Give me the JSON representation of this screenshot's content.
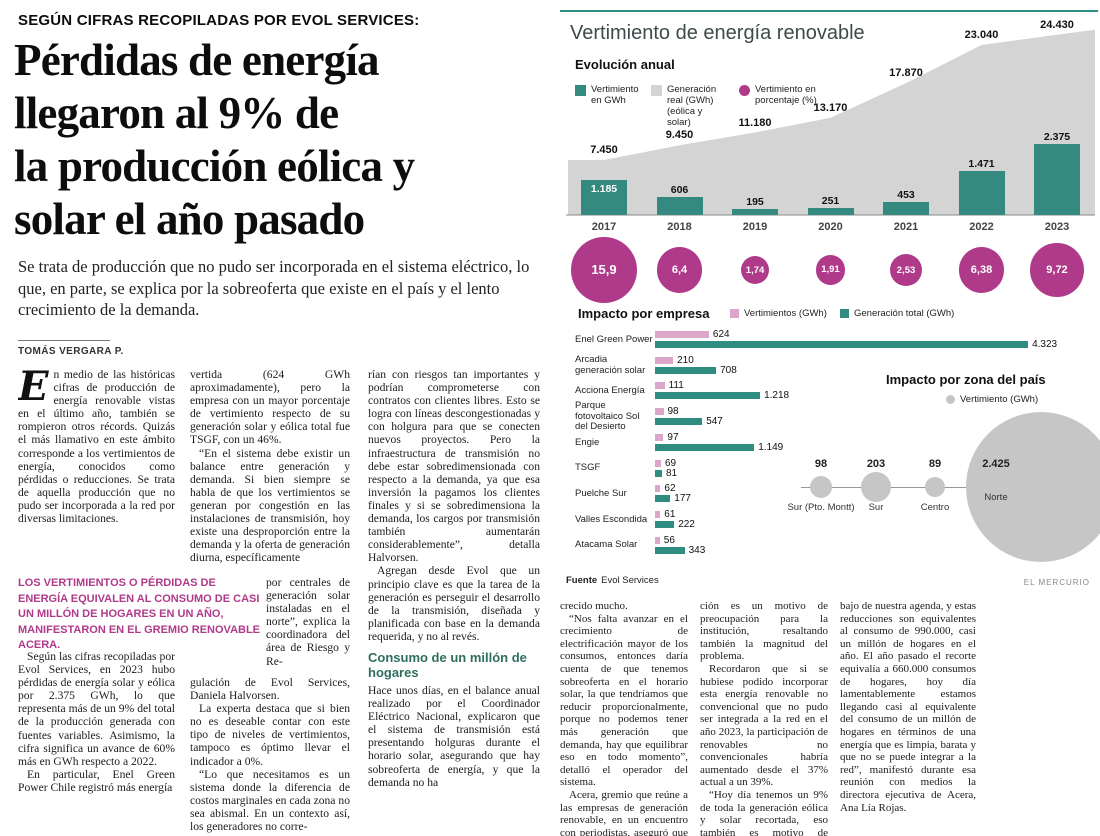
{
  "kicker": "SEGÚN CIFRAS RECOPILADAS POR EVOL SERVICES:",
  "headline_lines": [
    "Pérdidas de energía",
    "llegaron al 9% de",
    "la producción eólica y",
    "solar el año pasado"
  ],
  "lede": "Se trata de producción que no pudo ser incorporada en el sistema eléctrico, lo que, en parte, se explica por la sobreoferta que existe en el país y el lento crecimiento de la demanda.",
  "byline": "TOMÁS VERGARA P.",
  "article": {
    "intro_dropcap": "E",
    "intro_rest": "n medio de las históricas cifras de producción de energía renovable vistas en el último año, también se rompieron otros récords. Quizás el más llamativo en este ámbito corresponde a los vertimientos de energía, conocidos como pérdidas o reducciones. Se trata de aquella producción que no pudo ser incorporada a la red por diversas limitaciones.",
    "pull_quote": "LOS VERTIMIENTOS O PÉRDIDAS DE ENERGÍA EQUIVALEN AL CONSUMO DE CASI UN MILLÓN DE HOGARES EN UN AÑO, MANIFESTARON EN EL GREMIO RENOVABLE ACERA.",
    "col1_paras": [
      "Según las cifras recopiladas por Evol Services, en 2023 hubo pérdidas de energía solar y eólica por 2.375 GWh, lo que representa más de un 9% del total de la producción generada con fuentes variables. Asimismo, la cifra significa un avance de 60% más en GWh respecto a 2022.",
      "En particular, Enel Green Power Chile registró más energía"
    ],
    "col2_paras": [
      "vertida (624 GWh aproximadamente), pero la empresa con un mayor porcentaje de vertimiento respecto de su generación solar y eólica total fue TSGF, con un 46%.",
      "“En el sistema debe existir un balance entre generación y demanda. Si bien siempre se habla de que los vertimientos se generan por congestión en las instalaciones de transmisión, hoy existe una desproporción entre la demanda y la oferta de generación diurna, específicamente"
    ],
    "col2_wrap": "por centrales de generación solar instaladas en el norte”, explica la coordinadora del área de Riesgo y Re-",
    "col2_after": [
      "gulación de Evol Services, Daniela Halvorsen.",
      "La experta destaca que si bien no es deseable contar con este tipo de niveles de vertimientos, tampoco es óptimo llevar el indicador a 0%.",
      "“Lo que necesitamos es un sistema donde la diferencia de costos marginales en cada zona no sea abismal. En un contexto así, los generadores no corre-"
    ],
    "col3_paras": [
      "rían con riesgos tan importantes y podrían comprometerse con contratos con clientes libres. Esto se logra con líneas descongestionadas y con holgura para que se conecten nuevos proyectos. Pero la infraestructura de transmisión no debe estar sobredimensionada con respecto a la demanda, ya que esa inversión la pagamos los clientes finales y si se sobredimensiona la demanda, los cargos por transmisión también aumentarán considerablemente”, detalla Halvorsen.",
      "Agregan desde Evol que un principio clave es que la tarea de la generación es perseguir el desarrollo de la transmisión, diseñada y planificada con base en la demanda requerida, y no al revés."
    ],
    "subhead": "Consumo de un millón de hogares",
    "col3_after": [
      "Hace unos días, en el balance anual realizado por el Coordinador Eléctrico Nacional, explicaron que el sistema de transmisión está presentando holguras durante el horario solar, asegurando que hay sobreoferta de energía, y que la demanda no ha"
    ],
    "col4_paras": [
      "crecido mucho.",
      "“Nos falta avanzar en el crecimiento de electrificación mayor de los consumos, entonces daría cuenta de que tenemos sobreoferta en el horario solar, la que tendríamos que reducir proporcionalmente, porque no podemos tener más generación que demanda, hay que equilibrar eso en todo momento”, detalló el operador del sistema.",
      "Acera, gremio que reúne a las empresas de generación renovable, en un encuentro con periodistas, aseguró que esta situa-"
    ],
    "col5_paras": [
      "ción es un motivo de preocupación para la institución, resaltando también la magnitud del problema.",
      "Recordaron que si se hubiese podido incorporar esta energía renovable no convencional que no pudo ser integrada a la red en el año 2023, la participación de renovables no convencionales habría aumentado desde el 37% actual a un 39%.",
      "“Hoy día tenemos un 9% de toda la generación eólica y solar recortada, eso también es motivo de enfoque y de tra-"
    ],
    "col6_paras": [
      "bajo de nuestra agenda, y estas reducciones son equivalentes al consumo de 990.000, casi un millón de hogares en el año. El año pasado el recorte equivalía a 660.000 consumos de hogares, hoy día lamentablemente estamos llegando casi al equivalente del consumo de un millón de hogares en términos de una energía que es limpia, barata y que no se puede integrar a la red”, manifestó durante esa reunión con medios la directora ejecutiva de Acera, Ana Lía Rojas."
    ]
  },
  "infographic": {
    "title": "Vertimiento de energía renovable",
    "evolution": {
      "section_title": "Evolución anual",
      "legend": [
        {
          "icon": "teal-square",
          "label": "Vertimiento en GWh"
        },
        {
          "icon": "gray-square",
          "label": "Generación real (GWh) (eólica y solar)"
        },
        {
          "icon": "magenta-circle",
          "label": "Vertimiento en porcentaje (%)"
        }
      ]
    },
    "company": {
      "section_title": "Impacto por empresa",
      "legend_vert": "Vertimientos (GWh)",
      "legend_gen": "Generación total (GWh)"
    },
    "zone": {
      "section_title": "Impacto por zona del país",
      "legend": "Vertimiento (GWh)"
    },
    "source_label": "Fuente",
    "source_value": "Evol Services",
    "credit": "EL MERCURIO"
  },
  "colors": {
    "teal": "#348a7e",
    "teal_dark": "#2f8c80",
    "area_gray": "#d4d4d4",
    "magenta": "#b03a8a",
    "pink": "#dca6cb",
    "zone_gray": "#c6c6c6"
  },
  "chart_data": [
    {
      "type": "area",
      "title": "Evolución anual",
      "x": [
        2017,
        2018,
        2019,
        2020,
        2021,
        2022,
        2023
      ],
      "series": [
        {
          "name": "Generación real (GWh) (eólica y solar)",
          "type": "area",
          "values": [
            7450,
            9450,
            11180,
            13170,
            17870,
            23040,
            24430
          ],
          "labels": [
            "7.450",
            "9.450",
            "11.180",
            "13.170",
            "17.870",
            "23.040",
            "24.430"
          ]
        },
        {
          "name": "Vertimiento en GWh",
          "type": "bar",
          "values": [
            1185,
            606,
            195,
            251,
            453,
            1471,
            2375
          ],
          "labels": [
            "1.185",
            "606",
            "195",
            "251",
            "453",
            "1.471",
            "2.375"
          ]
        },
        {
          "name": "Vertimiento en porcentaje (%)",
          "type": "bubble",
          "values": [
            15.9,
            6.4,
            1.74,
            1.91,
            2.53,
            6.38,
            9.72
          ],
          "labels": [
            "15,9",
            "6,4",
            "1,74",
            "1,91",
            "2,53",
            "6,38",
            "9,72"
          ]
        }
      ],
      "legend_position": "top"
    },
    {
      "type": "bar",
      "orientation": "horizontal",
      "title": "Impacto por empresa",
      "categories": [
        "Enel Green Power",
        "Arcadia generación solar",
        "Acciona Energía",
        "Parque fotovoltaico Sol del Desierto",
        "Engie",
        "TSGF",
        "Puelche Sur",
        "Valles Escondida",
        "Atacama Solar"
      ],
      "series": [
        {
          "name": "Vertimientos (GWh)",
          "values": [
            624,
            210,
            111,
            98,
            97,
            69,
            62,
            61,
            56
          ],
          "labels": [
            "624",
            "210",
            "111",
            "98",
            "97",
            "69",
            "62",
            "61",
            "56"
          ]
        },
        {
          "name": "Generación total (GWh)",
          "values": [
            4323,
            708,
            1218,
            547,
            1149,
            81,
            177,
            222,
            343
          ],
          "labels": [
            "4.323",
            "708",
            "1.218",
            "547",
            "1.149",
            "81",
            "177",
            "222",
            "343"
          ]
        }
      ]
    },
    {
      "type": "bubble",
      "title": "Impacto por zona del país",
      "categories": [
        "Sur (Pto. Montt)",
        "Sur",
        "Centro",
        "Norte"
      ],
      "values": [
        98,
        203,
        89,
        2425
      ],
      "labels": [
        "98",
        "203",
        "89",
        "2.425"
      ]
    }
  ]
}
